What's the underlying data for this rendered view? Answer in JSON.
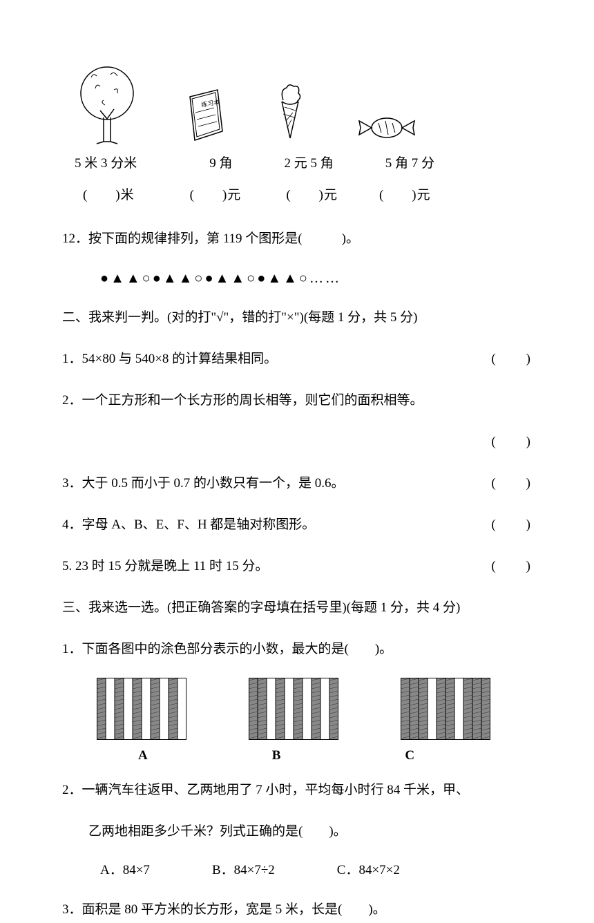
{
  "images": {
    "items": [
      {
        "label": "5 米 3 分米",
        "blank_prefix": "(",
        "blank_suffix": ")米"
      },
      {
        "label": "9 角",
        "blank_prefix": "(",
        "blank_suffix": ")元"
      },
      {
        "label": "2 元 5 角",
        "blank_prefix": "(",
        "blank_suffix": ")元"
      },
      {
        "label": "5 角 7 分",
        "blank_prefix": "(",
        "blank_suffix": ")元"
      }
    ]
  },
  "q12": {
    "text": "12．按下面的规律排列，第 119 个图形是(　　　)。",
    "pattern": "●▲▲○●▲▲○●▲▲○●▲▲○……"
  },
  "section2": {
    "heading": "二、我来判一判。(对的打\"√\"，错的打\"×\")(每题 1 分，共 5 分)",
    "q1": "1．54×80 与 540×8 的计算结果相同。",
    "q2": "2．一个正方形和一个长方形的周长相等，则它们的面积相等。",
    "q3": "3．大于 0.5 而小于 0.7 的小数只有一个，是 0.6。",
    "q4": "4．字母 A、B、E、F、H 都是轴对称图形。",
    "q5": "5. 23 时 15 分就是晚上 11 时 15 分。",
    "paren": "(　　)"
  },
  "section3": {
    "heading": "三、我来选一选。(把正确答案的字母填在括号里)(每题 1 分，共 4 分)",
    "q1": "1．下面各图中的涂色部分表示的小数，最大的是(　　)。",
    "labelA": "A",
    "labelB": "B",
    "labelC": "C",
    "q2a": "2．一辆汽车往返甲、乙两地用了 7 小时，平均每小时行 84 千米，甲、",
    "q2b": "乙两地相距多少千米？列式正确的是(　　)。",
    "optA": "A．84×7",
    "optB": "B．84×7÷2",
    "optC": "C．84×7×2",
    "q3": "3．面积是 80 平方米的长方形，宽是 5 米，长是(　　)。"
  },
  "charts": {
    "A": {
      "shaded": [
        0,
        2,
        4,
        6,
        8
      ],
      "total": 10
    },
    "B": {
      "shaded": [
        0,
        1,
        3,
        5,
        7,
        9
      ],
      "total": 10
    },
    "C": {
      "shaded": [
        0,
        1,
        2,
        4,
        5,
        7,
        8,
        9
      ],
      "total": 10
    }
  }
}
